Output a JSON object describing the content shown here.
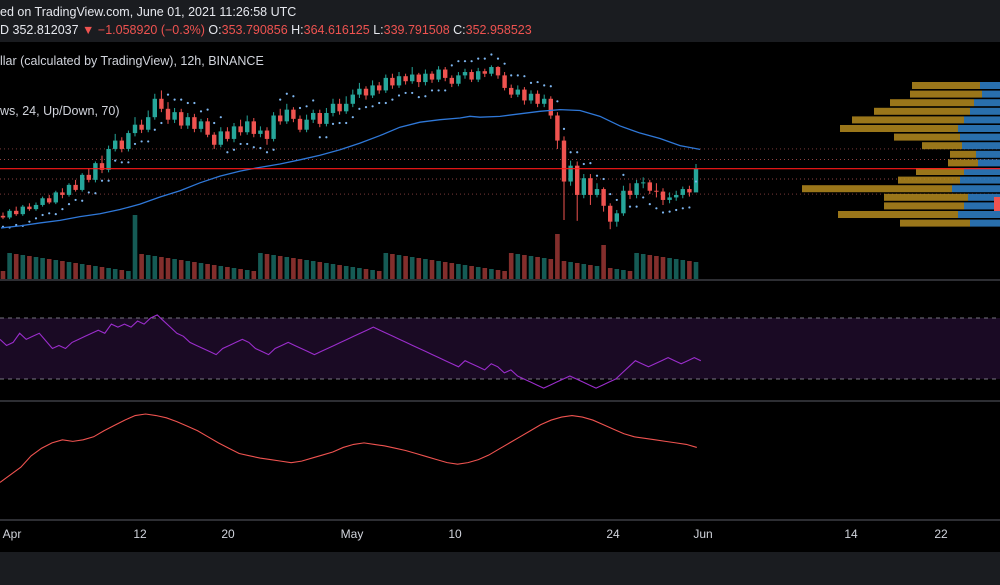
{
  "header": {
    "published_text": "ed on TradingView.com, June 01, 2021 11:26:58 UTC",
    "prefix": "D",
    "price": "352.812037",
    "arrow": "▼",
    "change": "−1.058920 (−0.3%)",
    "o_label": "O:",
    "o_value": "353.790856",
    "h_label": "H:",
    "h_value": "364.616125",
    "l_label": "L:",
    "l_value": "339.791508",
    "c_label": "C:",
    "c_value": "352.958523"
  },
  "legend": {
    "symbol": "llar (calculated by TradingView), 12h, BINANCE",
    "indicator": "ws, 24, Up/Down, 70)"
  },
  "colors": {
    "up": "#26a69a",
    "down": "#ef5350",
    "ma": "#2f78d8",
    "sar": "#7eb6f0",
    "rsi": "#9b2dcc",
    "osc": "#ef5350",
    "current_price": "#ff1a1a",
    "vp_up": "#2e7bc0",
    "vp_down": "#b58b1e"
  },
  "chart_data": {
    "type": "candlestick",
    "title": "",
    "x_axis": {
      "tick_labels": [
        "Apr",
        "12",
        "20",
        "May",
        "10",
        "24",
        "Jun",
        "14",
        "22"
      ]
    },
    "price_pane": {
      "candles": [
        [
          240,
          236,
          248,
          232
        ],
        [
          236,
          252,
          256,
          232
        ],
        [
          252,
          244,
          262,
          240
        ],
        [
          244,
          262,
          266,
          240
        ],
        [
          262,
          256,
          270,
          252
        ],
        [
          256,
          266,
          272,
          252
        ],
        [
          266,
          282,
          286,
          262
        ],
        [
          282,
          272,
          290,
          268
        ],
        [
          272,
          296,
          300,
          268
        ],
        [
          296,
          290,
          306,
          282
        ],
        [
          290,
          314,
          318,
          286
        ],
        [
          314,
          302,
          326,
          298
        ],
        [
          302,
          338,
          342,
          298
        ],
        [
          338,
          326,
          354,
          320
        ],
        [
          326,
          366,
          370,
          320
        ],
        [
          366,
          350,
          384,
          342
        ],
        [
          350,
          400,
          408,
          344
        ],
        [
          400,
          420,
          436,
          394
        ],
        [
          420,
          400,
          428,
          392
        ],
        [
          400,
          438,
          444,
          394
        ],
        [
          438,
          458,
          476,
          430
        ],
        [
          458,
          446,
          470,
          438
        ],
        [
          446,
          476,
          492,
          440
        ],
        [
          476,
          520,
          532,
          470
        ],
        [
          520,
          496,
          540,
          488
        ],
        [
          496,
          470,
          512,
          460
        ],
        [
          470,
          488,
          498,
          462
        ],
        [
          488,
          456,
          496,
          448
        ],
        [
          456,
          476,
          486,
          448
        ],
        [
          476,
          448,
          484,
          440
        ],
        [
          448,
          466,
          472,
          440
        ],
        [
          466,
          434,
          474,
          428
        ],
        [
          434,
          410,
          440,
          400
        ],
        [
          410,
          442,
          452,
          404
        ],
        [
          442,
          424,
          452,
          418
        ],
        [
          424,
          454,
          462,
          416
        ],
        [
          454,
          440,
          470,
          432
        ],
        [
          440,
          466,
          480,
          434
        ],
        [
          466,
          436,
          474,
          428
        ],
        [
          436,
          444,
          454,
          428
        ],
        [
          444,
          424,
          452,
          410
        ],
        [
          424,
          480,
          488,
          418
        ],
        [
          480,
          466,
          496,
          458
        ],
        [
          466,
          494,
          508,
          460
        ],
        [
          494,
          472,
          500,
          464
        ],
        [
          472,
          446,
          480,
          440
        ],
        [
          446,
          470,
          482,
          440
        ],
        [
          470,
          486,
          494,
          462
        ],
        [
          486,
          460,
          494,
          452
        ],
        [
          460,
          486,
          498,
          454
        ],
        [
          486,
          508,
          520,
          478
        ],
        [
          508,
          490,
          520,
          482
        ],
        [
          490,
          508,
          526,
          484
        ],
        [
          508,
          530,
          542,
          500
        ],
        [
          530,
          544,
          558,
          522
        ],
        [
          544,
          528,
          550,
          518
        ],
        [
          528,
          552,
          564,
          522
        ],
        [
          552,
          540,
          560,
          532
        ],
        [
          540,
          570,
          578,
          534
        ],
        [
          570,
          552,
          580,
          544
        ],
        [
          552,
          574,
          584,
          546
        ],
        [
          574,
          562,
          580,
          554
        ],
        [
          562,
          578,
          596,
          556
        ],
        [
          578,
          560,
          582,
          548
        ],
        [
          560,
          580,
          590,
          552
        ],
        [
          580,
          566,
          586,
          558
        ],
        [
          566,
          590,
          598,
          560
        ],
        [
          590,
          570,
          596,
          562
        ],
        [
          570,
          556,
          576,
          548
        ],
        [
          556,
          576,
          584,
          550
        ],
        [
          576,
          584,
          592,
          568
        ],
        [
          584,
          566,
          590,
          560
        ],
        [
          566,
          586,
          594,
          560
        ],
        [
          586,
          580,
          592,
          572
        ],
        [
          580,
          596,
          600,
          574
        ],
        [
          596,
          576,
          598,
          568
        ],
        [
          576,
          546,
          584,
          540
        ],
        [
          546,
          530,
          554,
          522
        ],
        [
          530,
          542,
          552,
          524
        ],
        [
          542,
          516,
          548,
          506
        ],
        [
          516,
          532,
          540,
          508
        ],
        [
          532,
          508,
          540,
          500
        ],
        [
          508,
          520,
          530,
          500
        ],
        [
          520,
          480,
          526,
          472
        ],
        [
          480,
          420,
          488,
          400
        ],
        [
          420,
          322,
          430,
          230
        ],
        [
          322,
          360,
          372,
          312
        ],
        [
          360,
          290,
          370,
          228
        ],
        [
          290,
          330,
          340,
          282
        ],
        [
          330,
          290,
          340,
          266
        ],
        [
          290,
          304,
          318,
          284
        ],
        [
          304,
          264,
          308,
          250
        ],
        [
          264,
          226,
          270,
          208
        ],
        [
          226,
          246,
          254,
          214
        ],
        [
          246,
          300,
          312,
          240
        ],
        [
          300,
          290,
          318,
          280
        ],
        [
          290,
          318,
          326,
          282
        ],
        [
          318,
          320,
          332,
          306
        ],
        [
          320,
          300,
          326,
          292
        ],
        [
          300,
          298,
          318,
          284
        ],
        [
          298,
          278,
          306,
          266
        ],
        [
          278,
          284,
          296,
          270
        ],
        [
          284,
          290,
          300,
          276
        ],
        [
          290,
          304,
          310,
          282
        ],
        [
          304,
          296,
          312,
          286
        ],
        [
          296,
          352,
          364,
          340
        ]
      ],
      "moving_average": [
        [
          1,
          211
        ],
        [
          20,
          216
        ],
        [
          40,
          223
        ],
        [
          60,
          229
        ],
        [
          80,
          238
        ],
        [
          100,
          245
        ],
        [
          120,
          255
        ],
        [
          140,
          268
        ],
        [
          160,
          285
        ],
        [
          180,
          300
        ],
        [
          200,
          319
        ],
        [
          220,
          335
        ],
        [
          240,
          347
        ],
        [
          260,
          356
        ],
        [
          280,
          364
        ],
        [
          300,
          374
        ],
        [
          320,
          385
        ],
        [
          340,
          398
        ],
        [
          360,
          414
        ],
        [
          380,
          432
        ],
        [
          400,
          452
        ],
        [
          420,
          464
        ],
        [
          440,
          470
        ],
        [
          460,
          474
        ],
        [
          470,
          478
        ],
        [
          480,
          476
        ],
        [
          500,
          478
        ],
        [
          520,
          484
        ],
        [
          540,
          490
        ],
        [
          560,
          494
        ],
        [
          580,
          492
        ],
        [
          600,
          478
        ],
        [
          620,
          455
        ],
        [
          640,
          438
        ],
        [
          660,
          425
        ],
        [
          680,
          408
        ],
        [
          700,
          399
        ]
      ],
      "current_price": 352.81,
      "dotted_levels": [
        400,
        375,
        328,
        292
      ]
    },
    "rsi_pane": {
      "upper_band": 70,
      "lower_band": 30,
      "values": [
        56,
        52,
        54,
        60,
        56,
        58,
        60,
        55,
        50,
        52,
        50,
        54,
        56,
        58,
        60,
        62,
        60,
        66,
        64,
        66,
        64,
        68,
        66,
        70,
        72,
        68,
        64,
        60,
        58,
        54,
        52,
        50,
        48,
        46,
        50,
        52,
        54,
        56,
        54,
        50,
        48,
        46,
        50,
        52,
        54,
        52,
        50,
        48,
        46,
        48,
        50,
        52,
        54,
        56,
        58,
        60,
        62,
        64,
        62,
        60,
        58,
        56,
        54,
        52,
        50,
        48,
        46,
        44,
        42,
        40,
        38,
        42,
        40,
        38,
        36,
        40,
        38,
        34,
        36,
        32,
        30,
        28,
        26,
        24,
        26,
        28,
        30,
        32,
        30,
        28,
        26,
        24,
        26,
        28,
        30,
        34,
        38,
        42,
        40,
        38,
        40,
        42,
        44,
        42,
        40,
        42,
        44,
        42
      ]
    },
    "osc_pane": {
      "values": [
        10,
        20,
        30,
        45,
        55,
        62,
        66,
        64,
        66,
        70,
        78,
        85,
        92,
        98,
        100,
        98,
        95,
        90,
        84,
        78,
        70,
        62,
        55,
        48,
        45,
        42,
        40,
        38,
        36,
        38,
        42,
        46,
        50,
        56,
        60,
        62,
        60,
        58,
        55,
        52,
        48,
        44,
        40,
        36,
        34,
        36,
        40,
        46,
        54,
        62,
        70,
        78,
        86,
        92,
        96,
        98,
        96,
        92,
        86,
        80,
        74,
        70,
        68,
        66,
        64,
        62,
        60,
        56
      ]
    },
    "volume_profile": [
      {
        "up": 20,
        "down": 68
      },
      {
        "up": 18,
        "down": 72
      },
      {
        "up": 26,
        "down": 84
      },
      {
        "up": 30,
        "down": 96
      },
      {
        "up": 36,
        "down": 112
      },
      {
        "up": 42,
        "down": 118
      },
      {
        "up": 40,
        "down": 66
      },
      {
        "up": 38,
        "down": 40
      },
      {
        "up": 24,
        "down": 26
      },
      {
        "up": 22,
        "down": 30
      },
      {
        "up": 36,
        "down": 48
      },
      {
        "up": 40,
        "down": 62
      },
      {
        "up": 48,
        "down": 150
      },
      {
        "up": 32,
        "down": 84
      },
      {
        "up": 36,
        "down": 80
      },
      {
        "up": 42,
        "down": 120
      },
      {
        "up": 30,
        "down": 70
      }
    ]
  }
}
